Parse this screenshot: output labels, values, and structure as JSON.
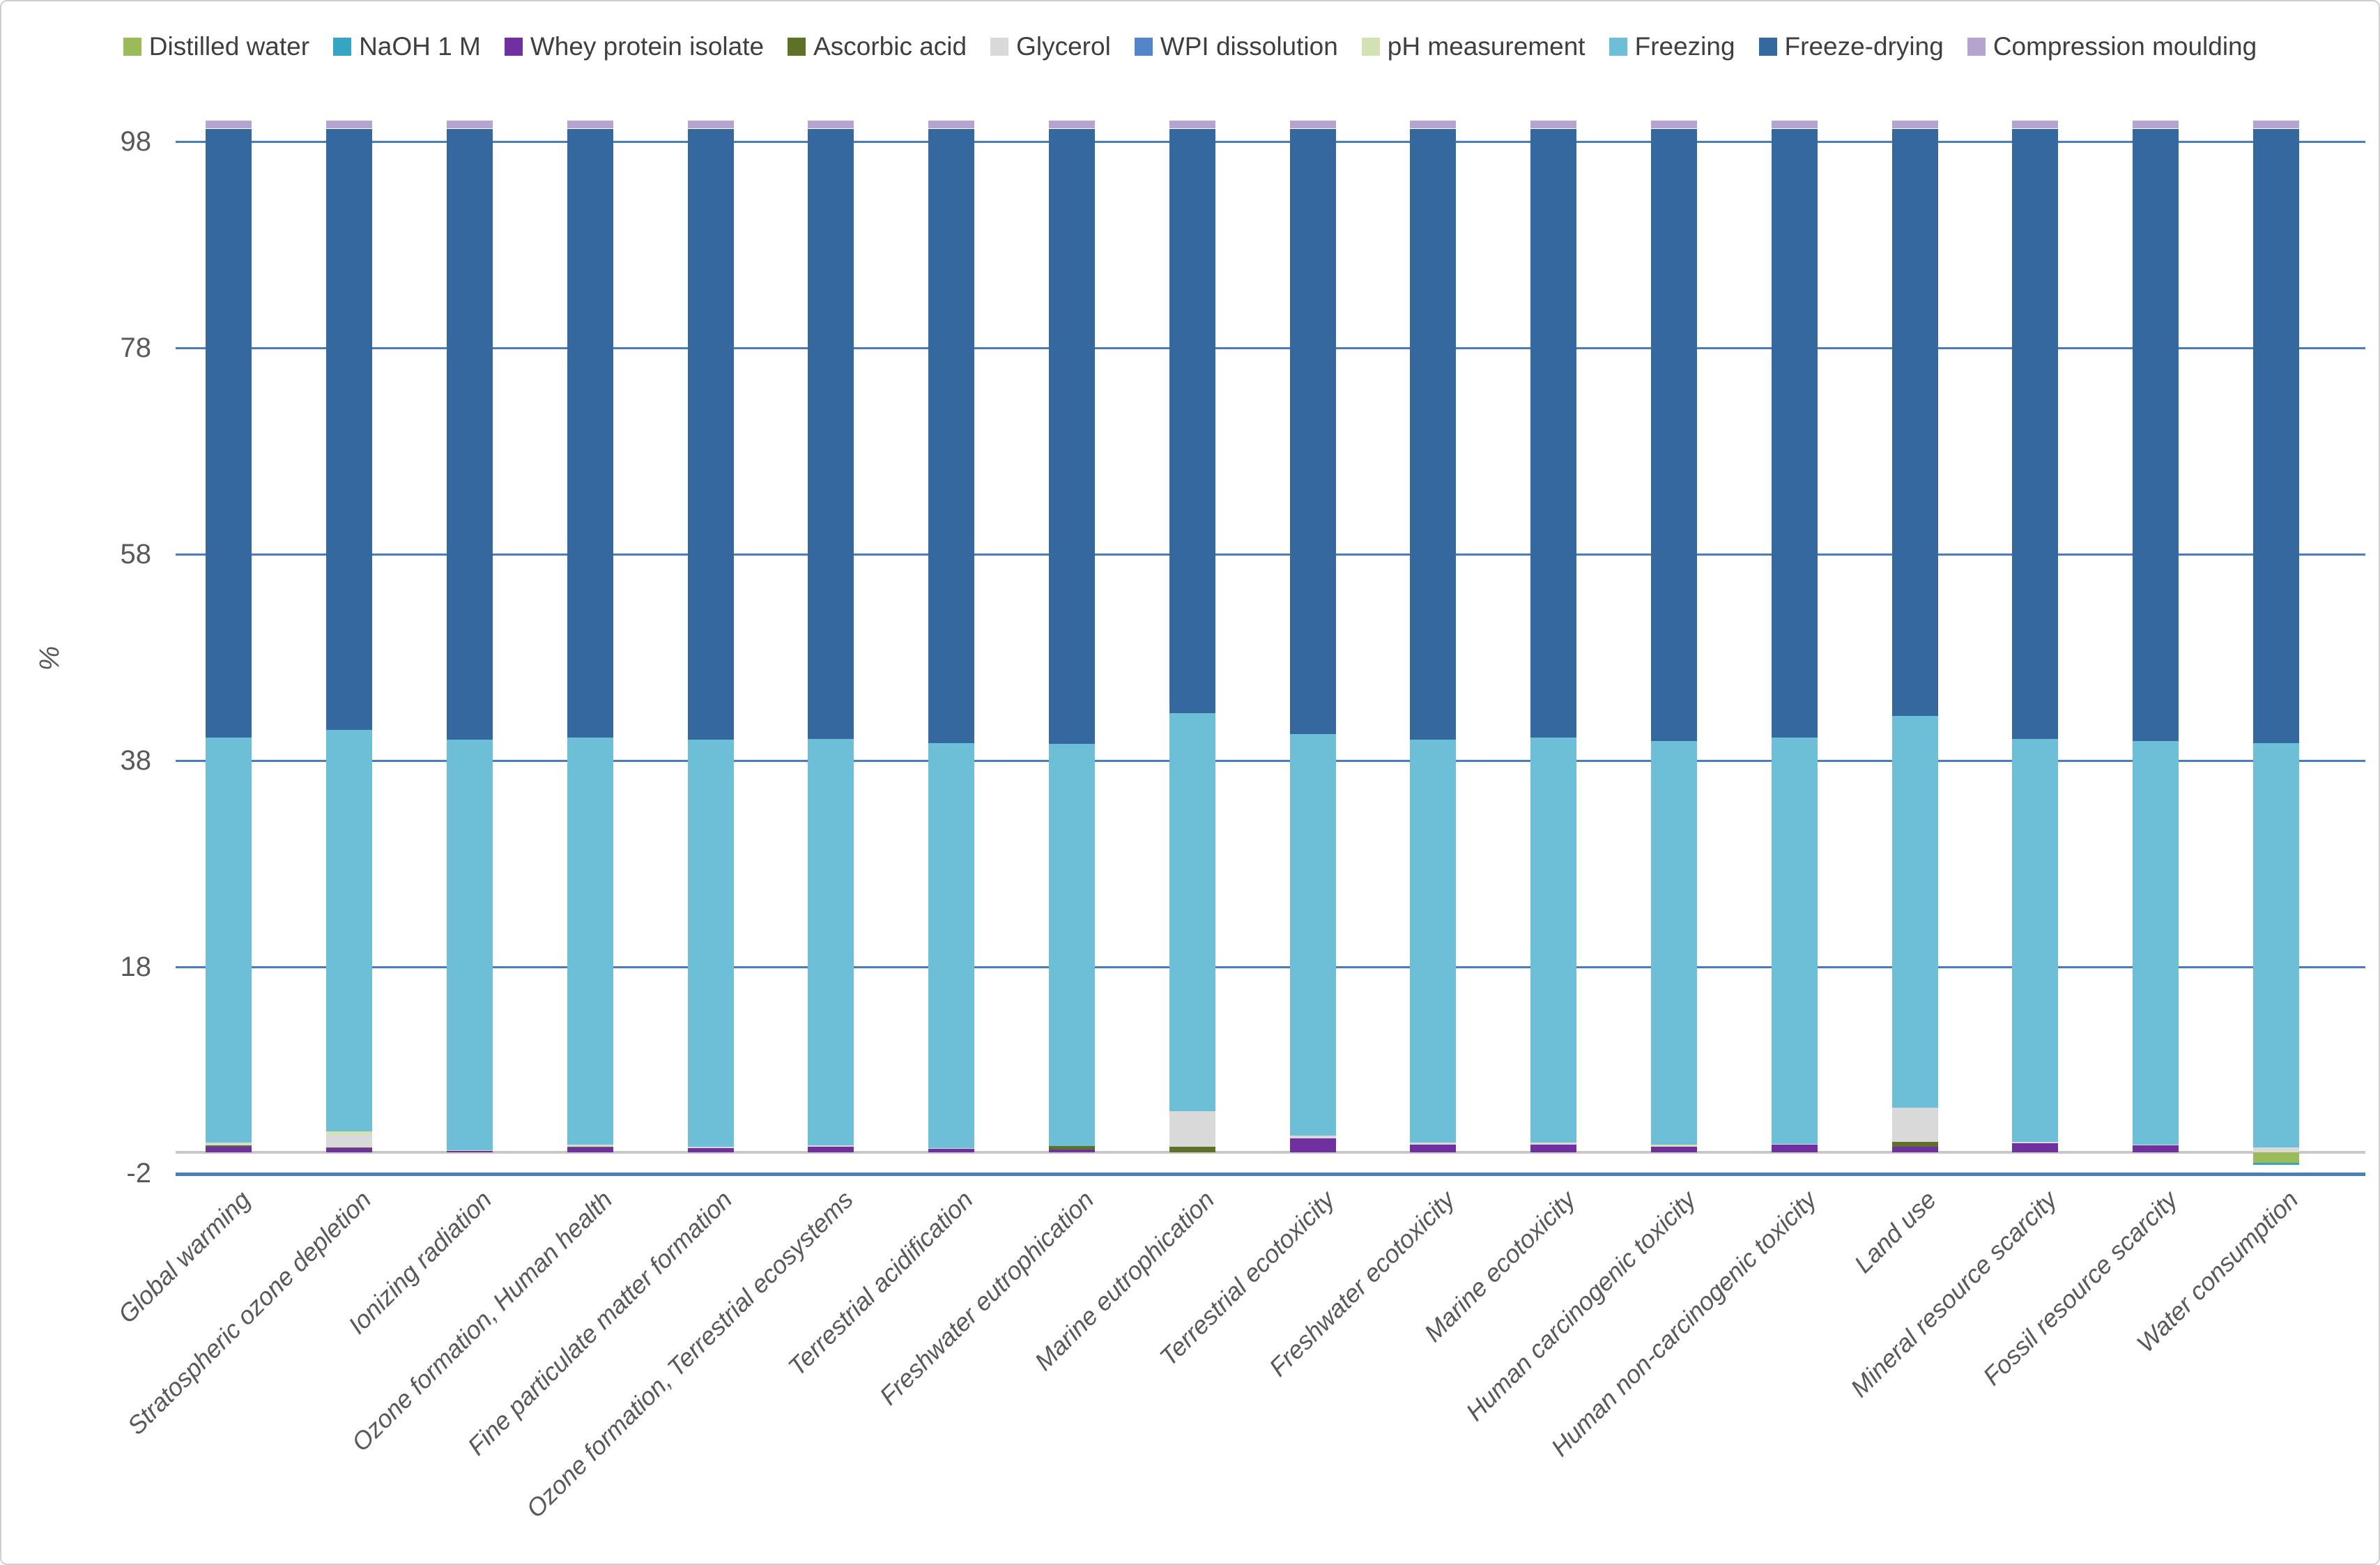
{
  "chart_data": {
    "type": "bar",
    "stacked": true,
    "normalized_percent": true,
    "title": "",
    "ylabel": "%",
    "yticks": [
      98,
      78,
      58,
      38,
      18,
      -2
    ],
    "ylim": [
      -2,
      102
    ],
    "zero_baseline": 0,
    "grid": true,
    "legend_position": "top",
    "gridline_color": "#4a7ebb",
    "zero_line_color": "#c8c8c8",
    "categories": [
      "Global warming",
      "Stratospheric ozone depletion",
      "Ionizing radiation",
      "Ozone formation, Human health",
      "Fine particulate matter formation",
      "Ozone formation, Terrestrial ecosystems",
      "Terrestrial acidification",
      "Freshwater eutrophication",
      "Marine eutrophication",
      "Terrestrial ecotoxicity",
      "Freshwater ecotoxicity",
      "Marine ecotoxicity",
      "Human carcinogenic toxicity",
      "Human non-carcinogenic toxicity",
      "Land use",
      "Mineral resource scarcity",
      "Fossil resource scarcity",
      "Water consumption"
    ],
    "series": [
      {
        "name": "Distilled water",
        "color": "#9bbb59",
        "values": [
          0,
          0,
          0,
          0,
          0,
          0,
          0,
          0,
          0,
          0,
          0,
          0,
          0,
          0,
          0,
          0,
          0,
          -1.0
        ]
      },
      {
        "name": "NaOH 1 M",
        "color": "#35a5c4",
        "values": [
          0,
          0,
          0,
          0,
          0,
          0,
          0,
          0,
          0,
          0,
          0,
          0,
          0,
          0,
          0,
          0,
          0,
          -0.2
        ]
      },
      {
        "name": "Whey protein isolate",
        "color": "#7030a0",
        "values": [
          0.6,
          0.45,
          0.15,
          0.55,
          0.4,
          0.55,
          0.35,
          0.3,
          0,
          1.4,
          0.8,
          0.8,
          0.6,
          0.75,
          0.6,
          0.9,
          0.7,
          0
        ]
      },
      {
        "name": "Ascorbic acid",
        "color": "#5e7227",
        "values": [
          0.1,
          0.05,
          0,
          0.05,
          0,
          0,
          0,
          0.35,
          0.6,
          0,
          0,
          0,
          0,
          0,
          0.45,
          0,
          0,
          0
        ]
      },
      {
        "name": "Glycerol",
        "color": "#d9d9d9",
        "values": [
          0.2,
          1.2,
          0.1,
          0.2,
          0.15,
          0.15,
          0.1,
          0,
          3.4,
          0.25,
          0.15,
          0.15,
          0,
          0.1,
          3.3,
          0.15,
          0.1,
          0.5
        ]
      },
      {
        "name": "WPI dissolution",
        "color": "#5585c9",
        "values": [
          0,
          0,
          0,
          0,
          0,
          0,
          0,
          0,
          0,
          0,
          0,
          0,
          0,
          0,
          0,
          0,
          0,
          0
        ]
      },
      {
        "name": "pH measurement",
        "color": "#d2e2b2",
        "values": [
          0.1,
          0.35,
          0,
          0,
          0,
          0,
          0,
          0,
          0,
          0,
          0,
          0,
          0.2,
          0,
          0,
          0,
          0,
          0
        ]
      },
      {
        "name": "Freezing",
        "color": "#6cbfd6",
        "values": [
          39.2,
          38.95,
          39.75,
          39.4,
          39.45,
          39.4,
          39.25,
          38.95,
          38.6,
          38.95,
          39.05,
          39.25,
          39.1,
          39.35,
          37.95,
          39.05,
          39.1,
          39.2
        ]
      },
      {
        "name": "Freeze-drying",
        "color": "#35689f",
        "values": [
          59.05,
          58.25,
          59.25,
          59.05,
          59.25,
          59.15,
          59.55,
          59.65,
          56.65,
          58.65,
          59.25,
          59.05,
          59.35,
          59.05,
          56.95,
          59.15,
          59.35,
          59.55
        ]
      },
      {
        "name": "Compression moulding",
        "color": "#b5a4cf",
        "values": [
          0.75,
          0.75,
          0.75,
          0.75,
          0.75,
          0.75,
          0.75,
          0.75,
          0.75,
          0.75,
          0.75,
          0.75,
          0.75,
          0.75,
          0.75,
          0.75,
          0.75,
          0.75
        ]
      }
    ]
  }
}
